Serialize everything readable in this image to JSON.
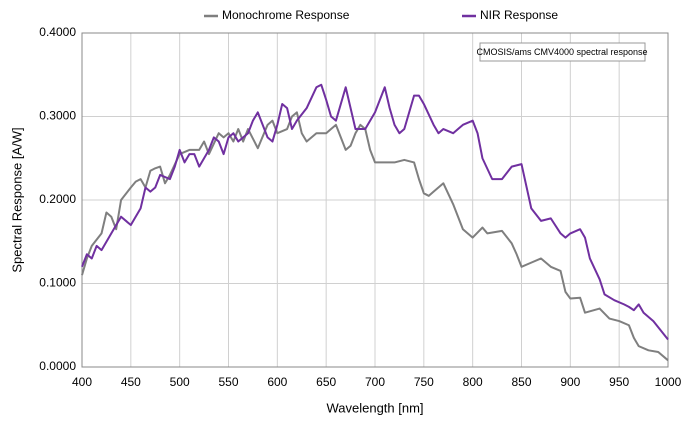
{
  "chart_data": {
    "type": "line",
    "xlabel": "Wavelength [nm]",
    "ylabel": "Spectral Response [A/W]",
    "annotation": "CMOSIS/ams CMV4000 spectral response",
    "xlim": [
      400,
      1000
    ],
    "xticks": [
      400,
      450,
      500,
      550,
      600,
      650,
      700,
      750,
      800,
      850,
      900,
      950,
      1000
    ],
    "ylim": [
      0,
      0.4
    ],
    "yticks": [
      {
        "value": 0,
        "label": "0.0000"
      },
      {
        "value": 0.1,
        "label": "0.1000"
      },
      {
        "value": 0.2,
        "label": "0.2000"
      },
      {
        "value": 0.3,
        "label": "0.3000"
      },
      {
        "value": 0.4,
        "label": "0.4000"
      }
    ],
    "grid": true,
    "legend": "top",
    "series": [
      {
        "name": "Monochrome Response",
        "color": "#7f7f7f",
        "x": [
          400,
          405,
          410,
          420,
          425,
          430,
          435,
          440,
          450,
          455,
          460,
          465,
          470,
          475,
          480,
          485,
          490,
          500,
          510,
          520,
          525,
          530,
          540,
          545,
          550,
          555,
          560,
          565,
          570,
          580,
          590,
          595,
          600,
          610,
          615,
          620,
          625,
          630,
          640,
          645,
          650,
          655,
          660,
          670,
          675,
          680,
          685,
          690,
          695,
          700,
          710,
          720,
          730,
          740,
          745,
          750,
          755,
          760,
          770,
          780,
          790,
          800,
          810,
          815,
          830,
          840,
          845,
          850,
          860,
          870,
          880,
          890,
          895,
          900,
          910,
          915,
          930,
          940,
          950,
          960,
          965,
          970,
          980,
          990,
          1000
        ],
        "values": [
          0.11,
          0.13,
          0.145,
          0.16,
          0.185,
          0.18,
          0.165,
          0.2,
          0.215,
          0.222,
          0.225,
          0.215,
          0.235,
          0.238,
          0.24,
          0.22,
          0.23,
          0.255,
          0.26,
          0.26,
          0.27,
          0.255,
          0.28,
          0.275,
          0.28,
          0.27,
          0.285,
          0.27,
          0.285,
          0.262,
          0.29,
          0.295,
          0.28,
          0.285,
          0.3,
          0.305,
          0.28,
          0.27,
          0.28,
          0.28,
          0.28,
          0.285,
          0.29,
          0.26,
          0.265,
          0.28,
          0.29,
          0.285,
          0.26,
          0.245,
          0.245,
          0.245,
          0.248,
          0.245,
          0.225,
          0.208,
          0.205,
          0.21,
          0.22,
          0.195,
          0.165,
          0.155,
          0.167,
          0.16,
          0.163,
          0.148,
          0.135,
          0.12,
          0.125,
          0.13,
          0.12,
          0.115,
          0.09,
          0.082,
          0.083,
          0.065,
          0.07,
          0.058,
          0.055,
          0.05,
          0.035,
          0.025,
          0.02,
          0.018,
          0.008
        ]
      },
      {
        "name": "NIR Response",
        "color": "#7030a0",
        "x": [
          400,
          405,
          410,
          415,
          420,
          430,
          440,
          450,
          460,
          465,
          470,
          475,
          480,
          490,
          495,
          500,
          505,
          510,
          515,
          520,
          530,
          535,
          540,
          545,
          550,
          555,
          560,
          570,
          575,
          580,
          585,
          590,
          595,
          600,
          605,
          610,
          615,
          620,
          630,
          640,
          645,
          650,
          655,
          660,
          670,
          675,
          680,
          690,
          700,
          710,
          715,
          720,
          725,
          730,
          740,
          745,
          750,
          760,
          765,
          770,
          780,
          790,
          800,
          805,
          810,
          820,
          830,
          840,
          850,
          860,
          870,
          880,
          890,
          895,
          900,
          910,
          915,
          920,
          930,
          935,
          945,
          955,
          960,
          965,
          970,
          975,
          985,
          1000
        ],
        "values": [
          0.12,
          0.135,
          0.13,
          0.145,
          0.14,
          0.16,
          0.18,
          0.17,
          0.19,
          0.215,
          0.21,
          0.215,
          0.23,
          0.225,
          0.24,
          0.26,
          0.245,
          0.255,
          0.255,
          0.24,
          0.26,
          0.275,
          0.27,
          0.255,
          0.275,
          0.28,
          0.27,
          0.28,
          0.295,
          0.305,
          0.29,
          0.275,
          0.27,
          0.29,
          0.315,
          0.31,
          0.285,
          0.295,
          0.31,
          0.335,
          0.338,
          0.32,
          0.3,
          0.295,
          0.335,
          0.31,
          0.285,
          0.285,
          0.305,
          0.335,
          0.31,
          0.29,
          0.28,
          0.285,
          0.325,
          0.325,
          0.315,
          0.29,
          0.28,
          0.285,
          0.28,
          0.29,
          0.295,
          0.28,
          0.25,
          0.225,
          0.225,
          0.24,
          0.243,
          0.19,
          0.175,
          0.178,
          0.16,
          0.155,
          0.16,
          0.165,
          0.155,
          0.13,
          0.105,
          0.087,
          0.08,
          0.075,
          0.072,
          0.068,
          0.075,
          0.065,
          0.055,
          0.033
        ]
      }
    ]
  }
}
